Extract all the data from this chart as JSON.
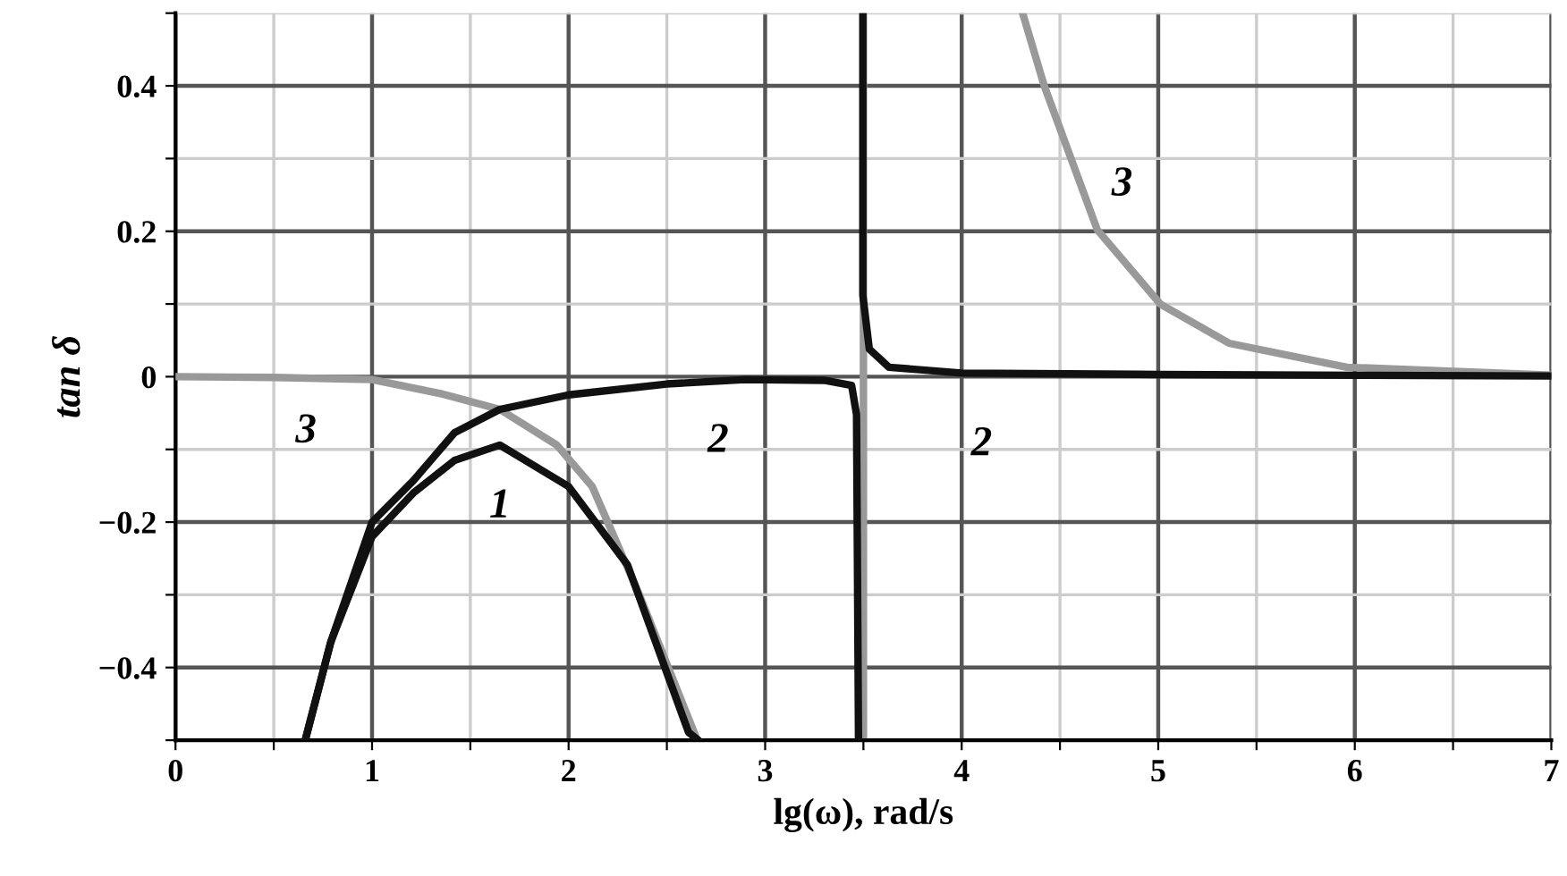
{
  "chart_data": {
    "type": "line",
    "xlabel": "lg(ω), rad/s",
    "ylabel": "tan δ",
    "xlim": [
      0,
      7
    ],
    "ylim": [
      -0.5,
      0.5
    ],
    "xticks": [
      0,
      {
        "value": 0.5,
        "label": null
      },
      1,
      {
        "value": 1.5,
        "label": null
      },
      2,
      {
        "value": 2.5,
        "label": null
      },
      3,
      {
        "value": 3.5,
        "label": null
      },
      4,
      {
        "value": 4.5,
        "label": null
      },
      5,
      {
        "value": 5.5,
        "label": null
      },
      6,
      {
        "value": 6.5,
        "label": null
      },
      7
    ],
    "yticks": [
      {
        "value": -0.5,
        "label": null
      },
      {
        "value": -0.4,
        "label": "−0.4"
      },
      {
        "value": -0.3,
        "label": null
      },
      {
        "value": -0.2,
        "label": "−0.2"
      },
      {
        "value": -0.1,
        "label": null
      },
      0,
      {
        "value": 0.1,
        "label": null
      },
      0.2,
      {
        "value": 0.3,
        "label": null
      },
      0.4,
      {
        "value": 0.5,
        "label": null
      }
    ],
    "grid": true,
    "marker": "none",
    "line_style": "solid",
    "series": [
      {
        "color": "#111111",
        "x": [
          0.66,
          0.79,
          1.0,
          1.21,
          1.42,
          1.65,
          2.0,
          2.3,
          2.61,
          2.66
        ],
        "values": [
          -0.5,
          -0.365,
          -0.22,
          -0.16,
          -0.115,
          -0.094,
          -0.151,
          -0.259,
          -0.489,
          -0.5
        ]
      },
      {
        "color": "#111111",
        "x": [
          0.66,
          0.79,
          1.0,
          1.21,
          1.42,
          1.65,
          2.0,
          2.5,
          2.9,
          3.3,
          3.44,
          3.465,
          3.475,
          3.49,
          3.497,
          3.497,
          3.53,
          3.63,
          4.0,
          5.0,
          7.0
        ],
        "values": [
          -0.5,
          -0.365,
          -0.2,
          -0.143,
          -0.077,
          -0.045,
          -0.025,
          -0.01,
          -0.004,
          -0.005,
          -0.012,
          -0.052,
          -0.5,
          null,
          0.5,
          0.112,
          0.038,
          0.013,
          0.005,
          0.003,
          0.001
        ]
      },
      {
        "color": "#999999",
        "x": [
          0.0,
          0.5,
          1.0,
          1.36,
          1.65,
          1.94,
          2.12,
          2.36,
          2.65,
          3.5,
          4.31,
          4.42,
          4.69,
          5.01,
          5.36,
          5.96,
          7.0
        ],
        "values": [
          0.0,
          -0.001,
          -0.004,
          -0.024,
          -0.045,
          -0.094,
          -0.151,
          -0.3,
          -0.497,
          null,
          0.5,
          0.4,
          0.202,
          0.1,
          0.046,
          0.013,
          0.002
        ]
      }
    ],
    "ref_lines": [
      {
        "axis": "x",
        "value": 3.5,
        "color": "#999999"
      }
    ],
    "annotations": [
      {
        "text": "1",
        "x": 1.65,
        "y": -0.094
      },
      {
        "text": "2",
        "x": 2.9,
        "y": -0.004
      },
      {
        "text": "2",
        "x": 4.0,
        "y": 0.005
      },
      {
        "text": "3",
        "x": 0.5,
        "y": -0.001
      },
      {
        "text": "3",
        "x": 4.69,
        "y": 0.202
      }
    ]
  }
}
